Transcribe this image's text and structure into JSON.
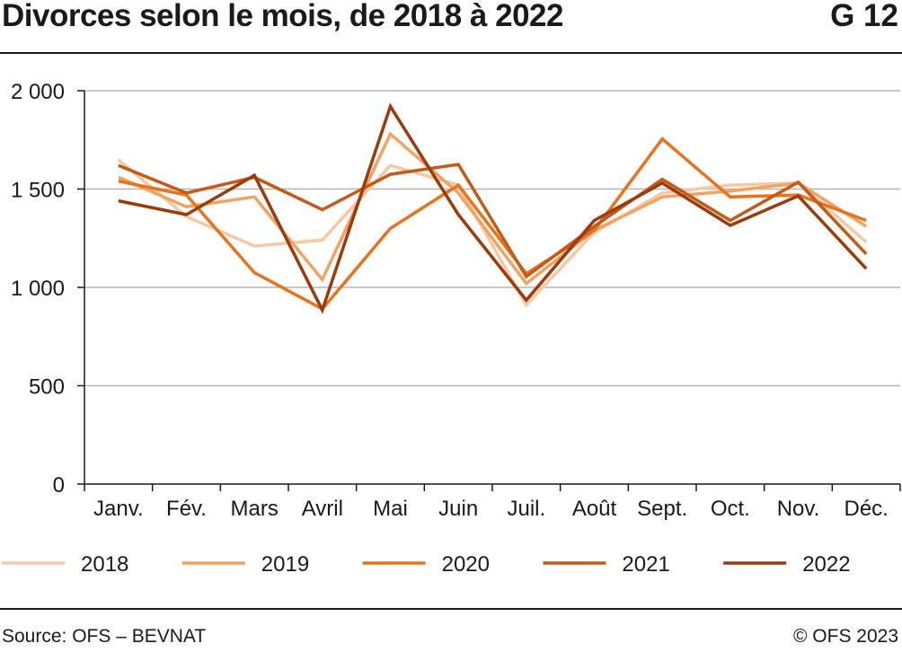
{
  "header": {
    "title": "Divorces selon le mois, de 2018 à 2022",
    "code": "G 12"
  },
  "footer": {
    "source": "Source: OFS – BEVNAT",
    "copyright": "© OFS 2023"
  },
  "chart_data": {
    "type": "line",
    "title": "Divorces selon le mois, de 2018 à 2022",
    "xlabel": "",
    "ylabel": "",
    "categories": [
      "Janv.",
      "Fév.",
      "Mars",
      "Avril",
      "Mai",
      "Juin",
      "Juil.",
      "Août",
      "Sept.",
      "Oct.",
      "Nov.",
      "Déc."
    ],
    "ylim": [
      0,
      2000
    ],
    "yticks": [
      0,
      500,
      1000,
      1500,
      2000
    ],
    "ytick_labels": [
      "0",
      "500",
      "1 000",
      "1 500",
      "2 000"
    ],
    "grid": "horizontal",
    "legend": "bottom",
    "series": [
      {
        "name": "2018",
        "color": "#f7c9a2",
        "values": [
          1650,
          1360,
          1210,
          1240,
          1620,
          1520,
          910,
          1280,
          1480,
          1520,
          1530,
          1230
        ]
      },
      {
        "name": "2019",
        "color": "#f2a261",
        "values": [
          1560,
          1410,
          1460,
          1040,
          1780,
          1480,
          1020,
          1290,
          1460,
          1490,
          1530,
          1310
        ]
      },
      {
        "name": "2020",
        "color": "#e8731c",
        "values": [
          1540,
          1470,
          1075,
          890,
          1300,
          1520,
          1070,
          1290,
          1755,
          1460,
          1470,
          1340
        ]
      },
      {
        "name": "2021",
        "color": "#c65a15",
        "values": [
          1620,
          1480,
          1560,
          1395,
          1575,
          1625,
          1055,
          1310,
          1550,
          1340,
          1535,
          1170
        ]
      },
      {
        "name": "2022",
        "color": "#9c3a0a",
        "values": [
          1440,
          1370,
          1570,
          885,
          1920,
          1370,
          935,
          1340,
          1530,
          1315,
          1465,
          1095
        ]
      }
    ]
  }
}
